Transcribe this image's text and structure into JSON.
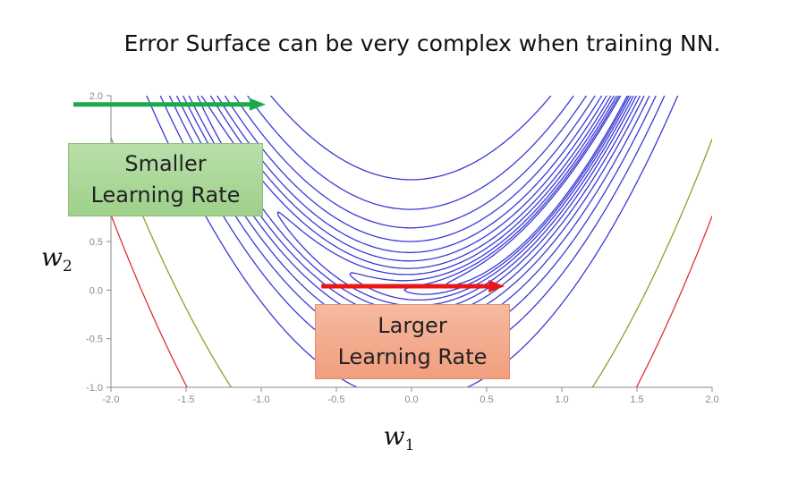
{
  "title": "Error Surface can be very complex when training NN.",
  "chart_data": {
    "type": "contour",
    "xlabel": "w",
    "xlabel_sub": "1",
    "ylabel": "w",
    "ylabel_sub": "2",
    "xlim": [
      -2.0,
      2.0
    ],
    "ylim": [
      -1.0,
      2.0
    ],
    "x_ticks": [
      "-2.0",
      "-1.5",
      "-1.0",
      "-0.5",
      "0.0",
      "0.5",
      "1.0",
      "1.5",
      "2.0"
    ],
    "y_ticks": [
      "2.0",
      "0.5",
      "0.0",
      "-0.5",
      "-1.0"
    ],
    "contour_color": "#3a3ad6",
    "outer_contour_colors": [
      "#9a9a2a",
      "#e03030"
    ],
    "annotations": [
      {
        "text": "Smaller\nLearning Rate",
        "arrow_color": "#1aaa4a",
        "arrow_from": [
          -2.25,
          1.91
        ],
        "arrow_to": [
          -0.97,
          1.91
        ]
      },
      {
        "text": "Larger\nLearning Rate",
        "arrow_color": "#e81818",
        "arrow_from": [
          -0.6,
          0.04
        ],
        "arrow_to": [
          0.62,
          0.04
        ]
      }
    ]
  }
}
